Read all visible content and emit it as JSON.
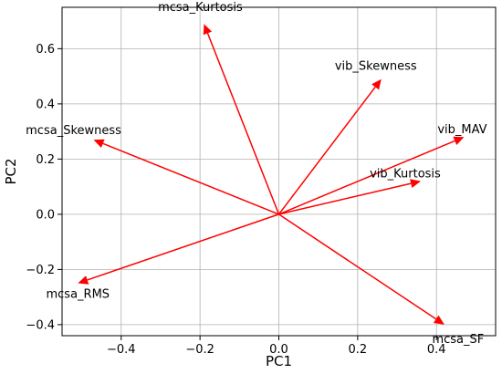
{
  "chart_data": {
    "type": "biplot",
    "xlabel": "PC1",
    "ylabel": "PC2",
    "xlim": [
      -0.55,
      0.55
    ],
    "ylim": [
      -0.44,
      0.75
    ],
    "xticks": [
      -0.4,
      -0.2,
      0.0,
      0.2,
      0.4
    ],
    "xtick_labels": [
      "−0.4",
      "−0.2",
      "0.0",
      "0.2",
      "0.4"
    ],
    "yticks": [
      -0.4,
      -0.2,
      0.0,
      0.2,
      0.4,
      0.6
    ],
    "ytick_labels": [
      "−0.4",
      "−0.2",
      "0.0",
      "0.2",
      "0.4",
      "0.6"
    ],
    "grid": true,
    "arrow_color": "#ff0000",
    "vectors": [
      {
        "name": "mcsa_Kurtosis",
        "x": -0.19,
        "y": 0.69
      },
      {
        "name": "vib_Skewness",
        "x": 0.26,
        "y": 0.49
      },
      {
        "name": "vib_MAV",
        "x": 0.47,
        "y": 0.28
      },
      {
        "name": "mcsa_Skewness",
        "x": -0.47,
        "y": 0.27
      },
      {
        "name": "vib_Kurtosis",
        "x": 0.36,
        "y": 0.12
      },
      {
        "name": "mcsa_RMS",
        "x": -0.51,
        "y": -0.25
      },
      {
        "name": "mcsa_SF",
        "x": 0.42,
        "y": -0.4
      }
    ]
  }
}
